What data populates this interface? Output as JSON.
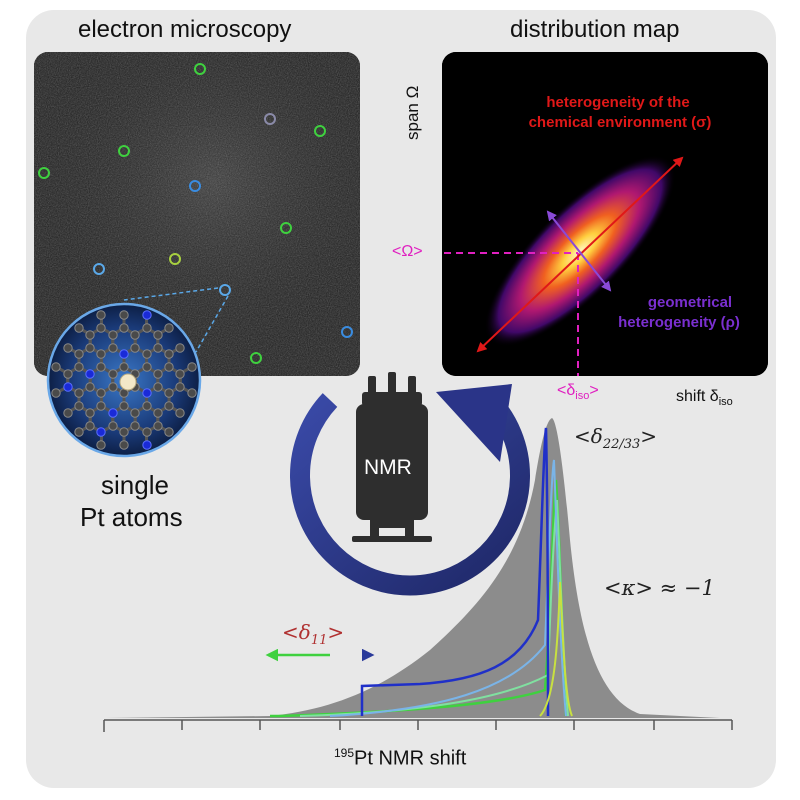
{
  "titles": {
    "left": "electron microscopy",
    "right": "distribution map"
  },
  "labels": {
    "single_1": "single",
    "single_2": "Pt atoms",
    "nmr": "NMR",
    "span_axis": "span Ω",
    "shift_axis_main": "shift δ",
    "shift_axis_sub": "iso",
    "omega_mean": "<Ω>",
    "diso_main": "<δ",
    "diso_sub": "iso",
    "diso_close": ">",
    "chem_line1": "heterogeneity of the",
    "chem_line2": "chemical environment (σ)",
    "geo_line1": "geometrical",
    "geo_line2": "heterogeneity (ρ)",
    "d2233_open": "<δ",
    "d2233_sub": "22/33",
    "d2233_close": ">",
    "kappa": "<κ> ≈ −1",
    "d11_open": "<δ",
    "d11_sub": "11",
    "d11_close": ">",
    "xaxis_sup": "195",
    "xaxis_main": "Pt NMR shift"
  },
  "colors": {
    "chem": "#e01818",
    "geo": "#7a2fd0",
    "mean_lines": "#e020c0",
    "arrow": "#2a2f7a",
    "spectrum": "#8a8a8a",
    "d11": "#b03030"
  },
  "icons": {
    "rotation": "circular-arrow-icon",
    "spectrometer": "nmr-magnet-icon",
    "molecule": "graphene-pt-molecule-icon"
  }
}
